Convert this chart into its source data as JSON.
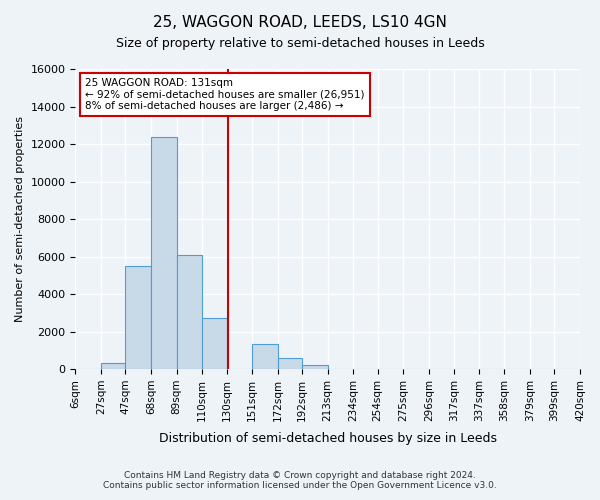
{
  "title": "25, WAGGON ROAD, LEEDS, LS10 4GN",
  "subtitle": "Size of property relative to semi-detached houses in Leeds",
  "xlabel": "Distribution of semi-detached houses by size in Leeds",
  "ylabel": "Number of semi-detached properties",
  "annotation_title": "25 WAGGON ROAD: 131sqm",
  "annotation_line1": "← 92% of semi-detached houses are smaller (26,951)",
  "annotation_line2": "8% of semi-detached houses are larger (2,486) →",
  "footer_line1": "Contains HM Land Registry data © Crown copyright and database right 2024.",
  "footer_line2": "Contains public sector information licensed under the Open Government Licence v3.0.",
  "bin_edges": [
    6,
    27,
    47,
    68,
    89,
    110,
    130,
    151,
    172,
    192,
    213,
    234,
    254,
    275,
    296,
    317,
    337,
    358,
    379,
    399,
    420
  ],
  "bin_labels": [
    "6sqm",
    "27sqm",
    "47sqm",
    "68sqm",
    "89sqm",
    "110sqm",
    "130sqm",
    "151sqm",
    "172sqm",
    "192sqm",
    "213sqm",
    "234sqm",
    "254sqm",
    "275sqm",
    "296sqm",
    "317sqm",
    "337sqm",
    "358sqm",
    "379sqm",
    "399sqm",
    "420sqm"
  ],
  "counts": [
    0,
    310,
    5500,
    12400,
    6100,
    2700,
    0,
    1350,
    600,
    220,
    0,
    0,
    0,
    0,
    0,
    0,
    0,
    0,
    0,
    0
  ],
  "property_size": 131,
  "bar_color": "#c8d9e8",
  "bar_edge_color": "#4d9ed4",
  "vline_color": "#cc0000",
  "annotation_box_color": "#ffffff",
  "annotation_box_edge": "#cc0000",
  "bg_color": "#eef3f8",
  "grid_color": "#ffffff",
  "ylim": [
    0,
    16000
  ],
  "yticks": [
    0,
    2000,
    4000,
    6000,
    8000,
    10000,
    12000,
    14000,
    16000
  ]
}
